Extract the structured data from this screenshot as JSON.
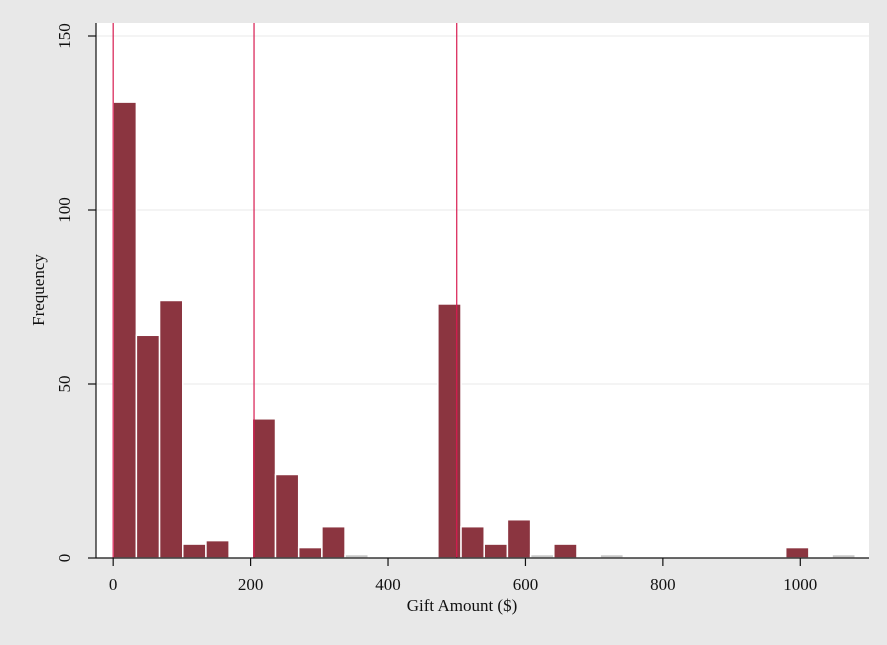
{
  "chart_data": {
    "type": "bar",
    "xlabel": "Gift Amount ($)",
    "ylabel": "Frequency",
    "xlim": [
      -25,
      1100
    ],
    "ylim": [
      0,
      150
    ],
    "x_ticks": [
      "0",
      "200",
      "400",
      "600",
      "800",
      "1000"
    ],
    "y_ticks": [
      "0",
      "50",
      "100",
      "150"
    ],
    "grid": true,
    "bin_width": 33.75,
    "bars": [
      {
        "x0": 0,
        "value": 131
      },
      {
        "x0": 33.75,
        "value": 64
      },
      {
        "x0": 67.5,
        "value": 74
      },
      {
        "x0": 101.25,
        "value": 4
      },
      {
        "x0": 135,
        "value": 5
      },
      {
        "x0": 168.75,
        "value": 0
      },
      {
        "x0": 202.5,
        "value": 40
      },
      {
        "x0": 236.25,
        "value": 24
      },
      {
        "x0": 270,
        "value": 3
      },
      {
        "x0": 303.75,
        "value": 9
      },
      {
        "x0": 337.5,
        "value": 1
      },
      {
        "x0": 472.5,
        "value": 73
      },
      {
        "x0": 506.25,
        "value": 9
      },
      {
        "x0": 540,
        "value": 4
      },
      {
        "x0": 573.75,
        "value": 11
      },
      {
        "x0": 607.5,
        "value": 1
      },
      {
        "x0": 641.25,
        "value": 4
      },
      {
        "x0": 708.75,
        "value": 1
      },
      {
        "x0": 978.75,
        "value": 3
      },
      {
        "x0": 1046.25,
        "value": 1
      }
    ],
    "reference_lines": [
      0,
      205,
      500
    ],
    "colors": {
      "bar": "#8b3540",
      "bar_light": "#c8c8c8",
      "reference_line": "#d81b50",
      "plot_bg": "#ffffff",
      "outer_bg": "#e8e8e8",
      "grid": "#eaeaea"
    }
  }
}
